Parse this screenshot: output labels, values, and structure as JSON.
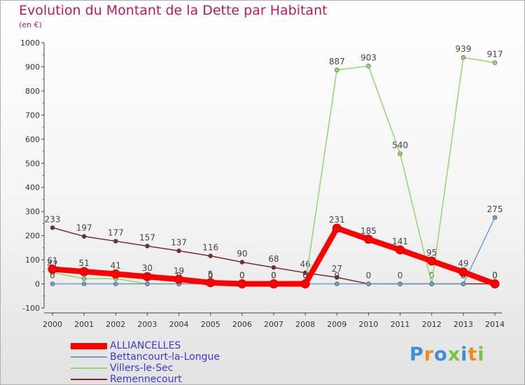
{
  "title": "Evolution du Montant de la Dette par Habitant",
  "subtitle": "(en €)",
  "brand": {
    "letters": [
      "P",
      "r",
      "o",
      "x",
      "i",
      "t",
      "i"
    ],
    "colors": [
      "#3b8fd6",
      "#f08a1c",
      "#3b8fd6",
      "#7cc242",
      "#3b8fd6",
      "#f08a1c",
      "#7cc242"
    ]
  },
  "chart_data": {
    "type": "line",
    "x": [
      "2000",
      "2001",
      "2002",
      "2003",
      "2004",
      "2005",
      "2006",
      "2007",
      "2008",
      "2009",
      "2010",
      "2011",
      "2012",
      "2013",
      "2014"
    ],
    "ylim": [
      -100,
      1000
    ],
    "yticks": [
      "-100",
      "0",
      "100",
      "200",
      "300",
      "400",
      "500",
      "600",
      "700",
      "800",
      "900",
      "1000"
    ],
    "grid": false,
    "legend": "bottom-left",
    "series": [
      {
        "name": "Remennecourt",
        "color": "#7a2a2a",
        "values": [
          233,
          197,
          177,
          157,
          137,
          116,
          90,
          68,
          46,
          27,
          0,
          0,
          0,
          0,
          0
        ],
        "labels": [
          "233",
          "197",
          "177",
          "157",
          "137",
          "116",
          "90",
          "68",
          "46",
          "27",
          "0",
          "0",
          "0",
          "0",
          "0"
        ]
      },
      {
        "name": "Villers-le-Sec",
        "color": "#8fd86a",
        "values": [
          47,
          22,
          22,
          0,
          0,
          0,
          0,
          0,
          0,
          887,
          903,
          540,
          0,
          939,
          917
        ],
        "labels": [
          "47",
          "",
          "",
          "",
          "",
          "",
          "",
          "",
          "",
          "887",
          "903",
          "540",
          "",
          "939",
          "917"
        ]
      },
      {
        "name": "Bettancourt-la-Longue",
        "color": "#6aa0c8",
        "values": [
          0,
          0,
          0,
          0,
          0,
          0,
          0,
          0,
          0,
          0,
          0,
          0,
          0,
          0,
          275
        ],
        "labels": [
          "0",
          "",
          "",
          "",
          "0",
          "0",
          "0",
          "0",
          "0",
          "0",
          "",
          "",
          "",
          "0",
          "275"
        ]
      },
      {
        "name": "ALLIANCELLES",
        "color": "#ff0000",
        "values": [
          61,
          51,
          41,
          30,
          19,
          5,
          0,
          0,
          0,
          231,
          185,
          141,
          95,
          49,
          0
        ],
        "labels": [
          "61",
          "51",
          "41",
          "30",
          "19",
          "5",
          "0",
          "0",
          "0",
          "231",
          "185",
          "141",
          "95",
          "49",
          "0"
        ]
      }
    ]
  },
  "legend": {
    "items": [
      {
        "label": "ALLIANCELLES",
        "color": "#ff0000",
        "thickness": 9
      },
      {
        "label": "Bettancourt-la-Longue",
        "color": "#6aa0c8",
        "thickness": 2
      },
      {
        "label": "Villers-le-Sec",
        "color": "#8fd86a",
        "thickness": 2
      },
      {
        "label": "Remennecourt",
        "color": "#7a2a2a",
        "thickness": 2
      }
    ]
  }
}
